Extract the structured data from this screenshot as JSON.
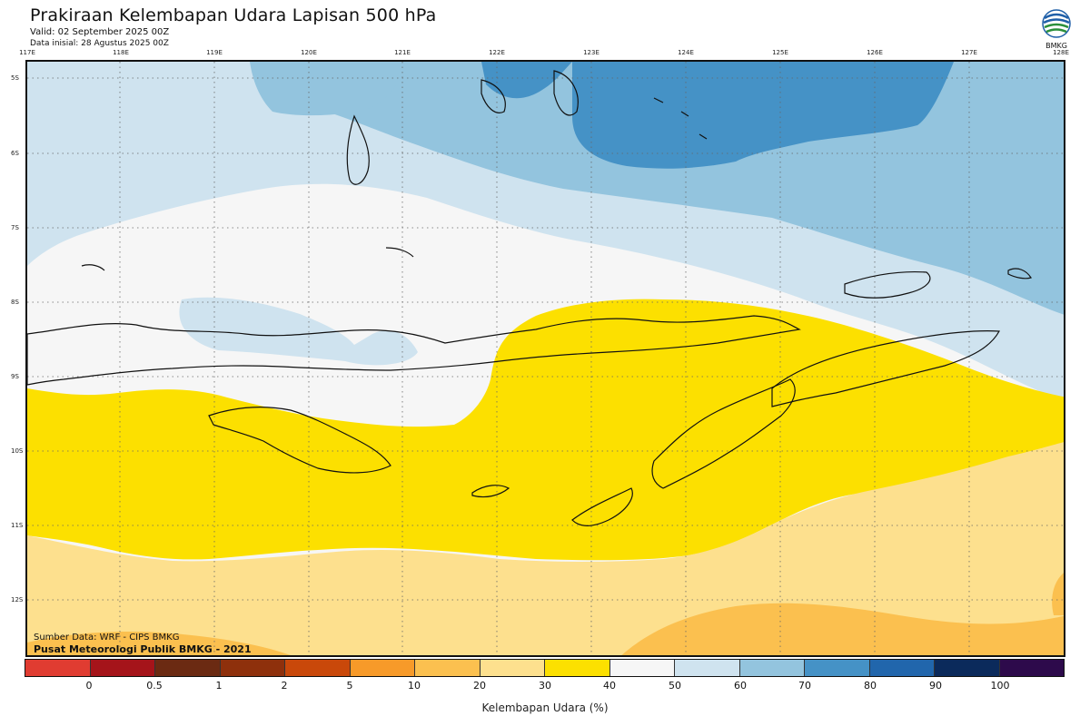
{
  "header": {
    "title": "Prakiraan Kelembapan Udara Lapisan 500 hPa",
    "valid": "Valid: 02 September 2025 00Z",
    "init": "Data inisial: 28 Agustus 2025 00Z",
    "logo_text": "BMKG"
  },
  "axes": {
    "lon_labels": [
      "117E",
      "118E",
      "119E",
      "120E",
      "121E",
      "122E",
      "123E",
      "124E",
      "125E",
      "126E",
      "127E",
      "128E"
    ],
    "lat_labels": [
      "5S",
      "6S",
      "7S",
      "8S",
      "9S",
      "10S",
      "11S",
      "12S"
    ]
  },
  "footer": {
    "source": "Sumber Data: WRF - CIPS BMKG",
    "org": "Pusat Meteorologi Publik BMKG - 2021"
  },
  "colorbar": {
    "title": "Kelembapan Udara (%)",
    "ticks": [
      "0",
      "0.5",
      "1",
      "2",
      "5",
      "10",
      "20",
      "30",
      "40",
      "50",
      "60",
      "70",
      "80",
      "90",
      "100"
    ],
    "colors": [
      "#e03c31",
      "#a5141a",
      "#6b2a12",
      "#8e300c",
      "#c9480a",
      "#f79a29",
      "#fbc04f",
      "#fde08e",
      "#fce000",
      "#f6f6f6",
      "#cfe3ef",
      "#93c4de",
      "#4592c6",
      "#2166ac",
      "#0b2a5b",
      "#2d0a4b"
    ]
  },
  "map": {
    "colors": {
      "humid_60_70": "#cfe3ef",
      "humid_70_80": "#93c4de",
      "humid_80_90": "#4592c6",
      "humid_50_60": "#f6f6f6",
      "humid_40_50": "#fce000",
      "humid_30_40": "#fde08e",
      "humid_20_30": "#fbc04f"
    }
  }
}
